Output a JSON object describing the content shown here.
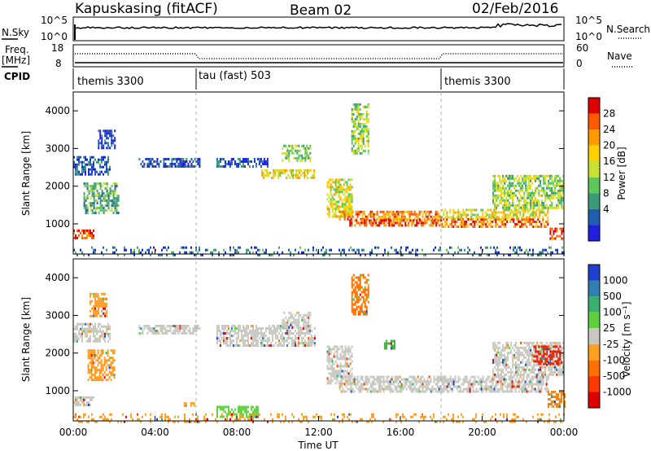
{
  "header": {
    "station": "Kapuskasing (fitACF)",
    "beam": "Beam 02",
    "date": "02/Feb/2016"
  },
  "top_panels": {
    "nsky_label": "N.Sky",
    "nsearch_label": "N.Search",
    "noise_ticks": [
      "10^5",
      "10^0"
    ],
    "freq_label": "Freq.",
    "freq_unit": "[MHz]",
    "freq_ticks": [
      18,
      8
    ],
    "nave_label": "Nave",
    "nave_ticks": [
      60,
      0
    ],
    "cpid_label": "CPID",
    "cpid_segments": [
      {
        "start_hour": 0,
        "end_hour": 6,
        "label": "themis 3300"
      },
      {
        "start_hour": 6,
        "end_hour": 18,
        "label": "tau (fast) 503"
      },
      {
        "start_hour": 18,
        "end_hour": 24,
        "label": "themis 3300"
      }
    ]
  },
  "chart_data": [
    {
      "type": "heatmap",
      "name_of_parameter": "power",
      "ylabel": "Slant Range [km]",
      "y_ticks": [
        1000,
        2000,
        3000,
        4000
      ],
      "ylim": [
        200,
        4500
      ],
      "xlim_hours": [
        0,
        24
      ],
      "colorbar_label": "Power [dB]",
      "colorbar_ticks": [
        "4",
        "8",
        "12",
        "16",
        "20",
        "24",
        "28"
      ],
      "colorbar_colors": [
        "#1f1fe0",
        "#1f5fb0",
        "#3a9a7a",
        "#5cc85c",
        "#c8e030",
        "#ffd000",
        "#ff9a00",
        "#ff5a00",
        "#e00000"
      ],
      "bands": [
        {
          "t0": 0.0,
          "t1": 1.0,
          "r0": 650,
          "r1": 850,
          "level": 0.85
        },
        {
          "t0": 0.0,
          "t1": 1.8,
          "r0": 2300,
          "r1": 2800,
          "level": 0.15
        },
        {
          "t0": 0.5,
          "t1": 2.2,
          "r0": 1300,
          "r1": 2100,
          "level": 0.35
        },
        {
          "t0": 1.2,
          "t1": 2.0,
          "r0": 3000,
          "r1": 3500,
          "level": 0.1
        },
        {
          "t0": 3.2,
          "t1": 6.2,
          "r0": 2550,
          "r1": 2750,
          "level": 0.1
        },
        {
          "t0": 7.0,
          "t1": 9.5,
          "r0": 2550,
          "r1": 2750,
          "level": 0.15
        },
        {
          "t0": 9.2,
          "t1": 11.8,
          "r0": 2200,
          "r1": 2450,
          "level": 0.6
        },
        {
          "t0": 10.2,
          "t1": 11.6,
          "r0": 2700,
          "r1": 3100,
          "level": 0.4
        },
        {
          "t0": 12.4,
          "t1": 13.6,
          "r0": 1200,
          "r1": 2200,
          "level": 0.55
        },
        {
          "t0": 13.0,
          "t1": 18.0,
          "r0": 1100,
          "r1": 1350,
          "level": 0.75
        },
        {
          "t0": 13.5,
          "t1": 18.0,
          "r0": 950,
          "r1": 1120,
          "level": 0.85
        },
        {
          "t0": 18.0,
          "t1": 23.2,
          "r0": 900,
          "r1": 1150,
          "level": 0.8
        },
        {
          "t0": 18.0,
          "t1": 23.2,
          "r0": 1150,
          "r1": 1400,
          "level": 0.55
        },
        {
          "t0": 20.5,
          "t1": 24.0,
          "r0": 1400,
          "r1": 2300,
          "level": 0.45
        },
        {
          "t0": 23.3,
          "t1": 24.0,
          "r0": 600,
          "r1": 900,
          "level": 0.9
        },
        {
          "t0": 13.6,
          "t1": 14.4,
          "r0": 2900,
          "r1": 4200,
          "level": 0.45
        },
        {
          "t0": 0.0,
          "t1": 24.0,
          "r0": 200,
          "r1": 400,
          "level": 0.2
        }
      ]
    },
    {
      "type": "heatmap",
      "name_of_parameter": "velocity",
      "ylabel": "Slant Range [km]",
      "y_ticks": [
        1000,
        2000,
        3000,
        4000
      ],
      "ylim": [
        200,
        4500
      ],
      "xlim_hours": [
        0,
        24
      ],
      "x_ticks": [
        "00:00",
        "04:00",
        "08:00",
        "12:00",
        "16:00",
        "20:00",
        "00:00"
      ],
      "xlabel": "Time UT",
      "colorbar_label": "Velocity [m s⁻¹]",
      "colorbar_ticks": [
        "1000",
        "500",
        "100",
        "25",
        "-25",
        "-100",
        "-500",
        "-1000"
      ],
      "colorbar_colors": [
        "#1f3fd0",
        "#2f7fb0",
        "#3ab070",
        "#60d040",
        "#c8c8c0",
        "#ffa020",
        "#ff7000",
        "#ff3a00",
        "#e00000"
      ],
      "bands": [
        {
          "t0": 0.0,
          "t1": 1.0,
          "r0": 650,
          "r1": 850,
          "color": "#c8c8c0"
        },
        {
          "t0": 0.0,
          "t1": 1.8,
          "r0": 2300,
          "r1": 2800,
          "color": "#c8c8c0"
        },
        {
          "t0": 0.7,
          "t1": 2.0,
          "r0": 1300,
          "r1": 2100,
          "color": "#ff9a20"
        },
        {
          "t0": 0.8,
          "t1": 1.6,
          "r0": 3000,
          "r1": 3600,
          "color": "#ff9a20"
        },
        {
          "t0": 3.2,
          "t1": 6.2,
          "r0": 2550,
          "r1": 2750,
          "color": "#c8c8c0"
        },
        {
          "t0": 7.0,
          "t1": 11.8,
          "r0": 2200,
          "r1": 2750,
          "color": "#c8c8c0"
        },
        {
          "t0": 10.2,
          "t1": 11.6,
          "r0": 2700,
          "r1": 3100,
          "color": "#c8c8c0"
        },
        {
          "t0": 12.4,
          "t1": 13.6,
          "r0": 1200,
          "r1": 2200,
          "color": "#c8c8c0"
        },
        {
          "t0": 13.0,
          "t1": 23.2,
          "r0": 950,
          "r1": 1400,
          "color": "#c8c8c0"
        },
        {
          "t0": 20.5,
          "t1": 24.0,
          "r0": 1400,
          "r1": 2300,
          "color": "#c8c8c0"
        },
        {
          "t0": 22.5,
          "t1": 23.8,
          "r0": 1700,
          "r1": 2200,
          "color": "#e02000"
        },
        {
          "t0": 23.2,
          "t1": 24.0,
          "r0": 550,
          "r1": 1000,
          "color": "#ff8000"
        },
        {
          "t0": 13.6,
          "t1": 14.4,
          "r0": 3000,
          "r1": 4100,
          "color": "#ff7000"
        },
        {
          "t0": 15.2,
          "t1": 15.7,
          "r0": 2150,
          "r1": 2350,
          "color": "#40b040"
        },
        {
          "t0": 5.4,
          "t1": 5.9,
          "r0": 600,
          "r1": 700,
          "color": "#ffa020"
        },
        {
          "t0": 7.0,
          "t1": 9.0,
          "r0": 300,
          "r1": 600,
          "color": "#60d040"
        },
        {
          "t0": 0.0,
          "t1": 24.0,
          "r0": 200,
          "r1": 400,
          "color": "#ffa020"
        }
      ]
    }
  ]
}
